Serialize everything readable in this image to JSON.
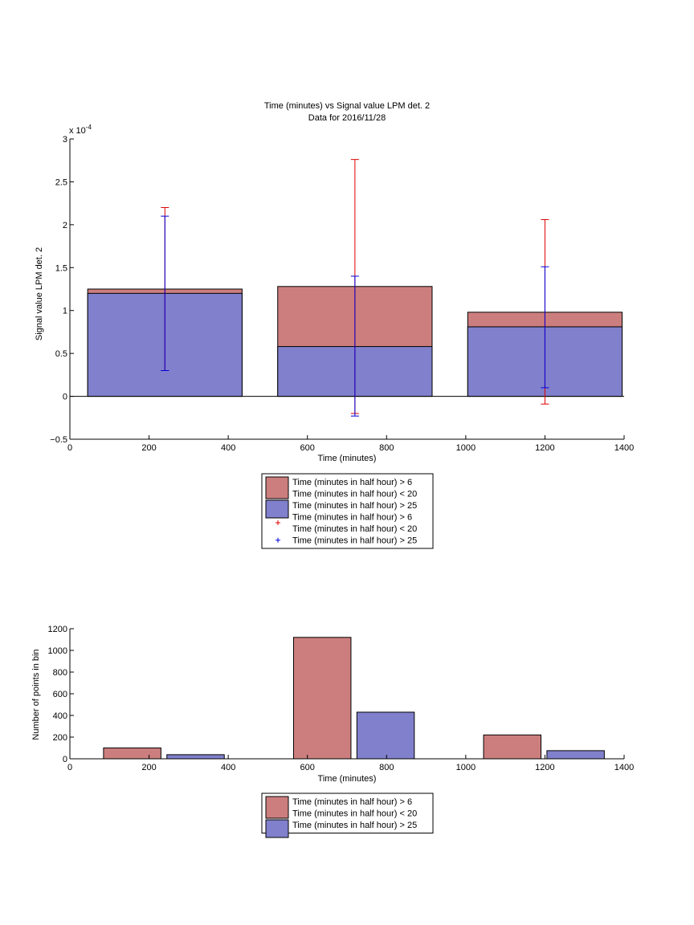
{
  "colors": {
    "red_bar": "#cc7e7e",
    "blue_bar": "#8080cc",
    "red_err": "#dd0000",
    "blue_err": "#0000dd",
    "stroke": "#000000"
  },
  "chart_data": [
    {
      "type": "bar",
      "stacked": true,
      "title": "Time (minutes) vs Signal value LPM det. 2",
      "subtitle": "Data for 2016/11/28",
      "xlabel": "Time (minutes)",
      "ylabel": "Signal value LPM det. 2",
      "y_exponent_label": "x 10",
      "y_exponent_power": "-4",
      "xlim": [
        0,
        1400
      ],
      "ylim": [
        -0.5,
        3
      ],
      "xticks": [
        0,
        200,
        400,
        600,
        800,
        1000,
        1200,
        1400
      ],
      "yticks": [
        -0.5,
        0,
        0.5,
        1,
        1.5,
        2,
        2.5,
        3
      ],
      "ytick_labels": [
        "−0.5",
        "0",
        "0.5",
        "1",
        "1.5",
        "2",
        "2.5",
        "3"
      ],
      "grid": false,
      "legend_position": "below",
      "bins": [
        {
          "x_start": 45,
          "x_end": 435,
          "center": 240
        },
        {
          "x_start": 525,
          "x_end": 915,
          "center": 720
        },
        {
          "x_start": 1005,
          "x_end": 1395,
          "center": 1200
        }
      ],
      "series": [
        {
          "name": "Time (minutes in half hour) > 6 Time (minutes in half hour) < 20",
          "color_key": "red_bar",
          "values": [
            1.25,
            1.28,
            0.98
          ]
        },
        {
          "name": "Time (minutes in half hour) > 25",
          "color_key": "blue_bar",
          "values": [
            1.2,
            0.58,
            0.81
          ]
        }
      ],
      "error_bars": [
        {
          "name": "Time (minutes in half hour) > 6 Time (minutes in half hour) < 20",
          "color_key": "red_err",
          "low": [
            0.3,
            -0.2,
            -0.09
          ],
          "high": [
            2.2,
            2.76,
            2.06
          ]
        },
        {
          "name": "Time (minutes in half hour) > 25",
          "color_key": "blue_err",
          "low": [
            0.3,
            -0.23,
            0.1
          ],
          "high": [
            2.1,
            1.4,
            1.51
          ]
        }
      ],
      "legend": [
        {
          "kind": "patch",
          "color_key": "red_bar",
          "lines": [
            "Time (minutes in half hour) > 6",
            "Time (minutes in half hour) < 20"
          ]
        },
        {
          "kind": "patch",
          "color_key": "blue_bar",
          "lines": [
            "Time (minutes in half hour) > 25"
          ]
        },
        {
          "kind": "marker",
          "color_key": "red_err",
          "lines": [
            "Time (minutes in half hour) > 6",
            "Time (minutes in half hour) < 20"
          ]
        },
        {
          "kind": "marker",
          "color_key": "blue_err",
          "lines": [
            "Time (minutes in half hour) > 25"
          ]
        }
      ]
    },
    {
      "type": "bar",
      "title": "",
      "xlabel": "Time (minutes)",
      "ylabel": "Number of points in bin",
      "xlim": [
        0,
        1400
      ],
      "ylim": [
        0,
        1200
      ],
      "xticks": [
        0,
        200,
        400,
        600,
        800,
        1000,
        1200,
        1400
      ],
      "yticks": [
        0,
        200,
        400,
        600,
        800,
        1000,
        1200
      ],
      "ytick_labels": [
        "0",
        "200",
        "400",
        "600",
        "800",
        "1000",
        "1200"
      ],
      "grid": false,
      "legend_position": "below",
      "bars": [
        {
          "series": "Time (minutes in half hour) > 6 Time (minutes in half hour) < 20",
          "color_key": "red_bar",
          "x_start": 85,
          "x_end": 230,
          "value": 100
        },
        {
          "series": "Time (minutes in half hour) > 25",
          "color_key": "blue_bar",
          "x_start": 245,
          "x_end": 390,
          "value": 38
        },
        {
          "series": "Time (minutes in half hour) > 6 Time (minutes in half hour) < 20",
          "color_key": "red_bar",
          "x_start": 565,
          "x_end": 710,
          "value": 1120
        },
        {
          "series": "Time (minutes in half hour) > 25",
          "color_key": "blue_bar",
          "x_start": 725,
          "x_end": 870,
          "value": 430
        },
        {
          "series": "Time (minutes in half hour) > 6 Time (minutes in half hour) < 20",
          "color_key": "red_bar",
          "x_start": 1045,
          "x_end": 1190,
          "value": 220
        },
        {
          "series": "Time (minutes in half hour) > 25",
          "color_key": "blue_bar",
          "x_start": 1205,
          "x_end": 1350,
          "value": 75
        }
      ],
      "legend": [
        {
          "kind": "patch",
          "color_key": "red_bar",
          "lines": [
            "Time (minutes in half hour) > 6",
            "Time (minutes in half hour) < 20"
          ]
        },
        {
          "kind": "patch",
          "color_key": "blue_bar",
          "lines": [
            "Time (minutes in half hour) > 25"
          ]
        }
      ]
    }
  ]
}
